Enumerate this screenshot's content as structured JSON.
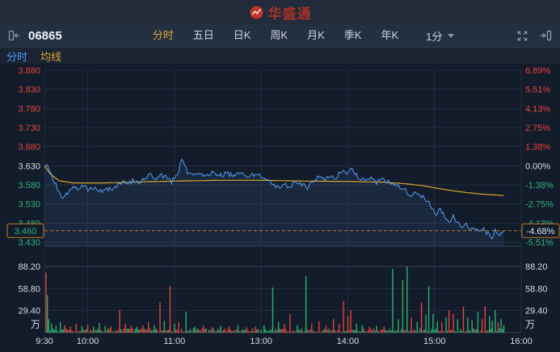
{
  "header": {
    "logo_text": "华盛通"
  },
  "toolbar": {
    "code": "06865",
    "tabs": [
      "分时",
      "五日",
      "日K",
      "周K",
      "月K",
      "季K",
      "年K"
    ],
    "active_tab": "分时",
    "interval": "1分"
  },
  "legend": {
    "items": [
      {
        "label": "分时",
        "color": "#4a9eff"
      },
      {
        "label": "均线",
        "color": "#e0a43a"
      }
    ]
  },
  "chart_data": {
    "type": "line",
    "prev_close": 3.63,
    "ylim": [
      3.43,
      3.88
    ],
    "price_axis_labels": [
      "3.880",
      "3.830",
      "3.780",
      "3.730",
      "3.680",
      "3.630",
      "3.580",
      "3.530",
      "3.480",
      "3.430"
    ],
    "pct_axis_labels": [
      "6.89%",
      "5.51%",
      "4.13%",
      "2.75%",
      "1.38%",
      "0.00%",
      "-1.38%",
      "-2.75%",
      "-4.13%",
      "-5.51%"
    ],
    "time_axis": [
      {
        "label": "9:30",
        "minute": 0
      },
      {
        "label": "10:00",
        "minute": 30
      },
      {
        "label": "11:00",
        "minute": 90
      },
      {
        "label": "13:00",
        "minute": 150
      },
      {
        "label": "14:00",
        "minute": 210
      },
      {
        "label": "15:00",
        "minute": 270
      },
      {
        "label": "16:00",
        "minute": 330
      }
    ],
    "session_minutes": 330,
    "data_end_minute": 318,
    "current": {
      "price": "3.460",
      "pct": "-4.68%"
    },
    "volume_axis_labels": [
      "88.20",
      "58.80",
      "29.40"
    ],
    "volume_unit": "万",
    "volume_max": 88.2,
    "price_keypoints": [
      [
        0,
        3.63
      ],
      [
        2,
        3.633
      ],
      [
        4,
        3.612
      ],
      [
        6,
        3.596
      ],
      [
        9,
        3.57
      ],
      [
        12,
        3.545
      ],
      [
        15,
        3.556
      ],
      [
        18,
        3.566
      ],
      [
        21,
        3.576
      ],
      [
        24,
        3.569
      ],
      [
        27,
        3.577
      ],
      [
        31,
        3.567
      ],
      [
        35,
        3.574
      ],
      [
        39,
        3.563
      ],
      [
        43,
        3.567
      ],
      [
        47,
        3.572
      ],
      [
        51,
        3.58
      ],
      [
        55,
        3.59
      ],
      [
        58,
        3.581
      ],
      [
        62,
        3.594
      ],
      [
        66,
        3.587
      ],
      [
        70,
        3.6
      ],
      [
        74,
        3.608
      ],
      [
        77,
        3.597
      ],
      [
        80,
        3.607
      ],
      [
        84,
        3.599
      ],
      [
        88,
        3.589
      ],
      [
        92,
        3.606
      ],
      [
        95,
        3.645
      ],
      [
        97,
        3.636
      ],
      [
        99,
        3.61
      ],
      [
        103,
        3.604
      ],
      [
        107,
        3.612
      ],
      [
        111,
        3.605
      ],
      [
        116,
        3.611
      ],
      [
        121,
        3.603
      ],
      [
        126,
        3.61
      ],
      [
        131,
        3.604
      ],
      [
        136,
        3.609
      ],
      [
        141,
        3.602
      ],
      [
        146,
        3.607
      ],
      [
        150,
        3.602
      ],
      [
        153,
        3.597
      ],
      [
        156,
        3.589
      ],
      [
        160,
        3.577
      ],
      [
        163,
        3.571
      ],
      [
        166,
        3.582
      ],
      [
        170,
        3.575
      ],
      [
        174,
        3.59
      ],
      [
        178,
        3.581
      ],
      [
        182,
        3.573
      ],
      [
        186,
        3.591
      ],
      [
        190,
        3.601
      ],
      [
        194,
        3.595
      ],
      [
        198,
        3.605
      ],
      [
        202,
        3.599
      ],
      [
        206,
        3.618
      ],
      [
        209,
        3.611
      ],
      [
        212,
        3.622
      ],
      [
        215,
        3.609
      ],
      [
        218,
        3.599
      ],
      [
        222,
        3.591
      ],
      [
        226,
        3.598
      ],
      [
        230,
        3.587
      ],
      [
        234,
        3.595
      ],
      [
        238,
        3.589
      ],
      [
        242,
        3.583
      ],
      [
        246,
        3.576
      ],
      [
        250,
        3.566
      ],
      [
        253,
        3.547
      ],
      [
        256,
        3.562
      ],
      [
        259,
        3.555
      ],
      [
        262,
        3.547
      ],
      [
        265,
        3.539
      ],
      [
        268,
        3.519
      ],
      [
        271,
        3.504
      ],
      [
        274,
        3.516
      ],
      [
        277,
        3.499
      ],
      [
        280,
        3.487
      ],
      [
        283,
        3.497
      ],
      [
        286,
        3.481
      ],
      [
        289,
        3.469
      ],
      [
        292,
        3.479
      ],
      [
        295,
        3.463
      ],
      [
        298,
        3.471
      ],
      [
        301,
        3.454
      ],
      [
        304,
        3.467
      ],
      [
        307,
        3.451
      ],
      [
        310,
        3.441
      ],
      [
        312,
        3.459
      ],
      [
        314,
        3.447
      ],
      [
        316,
        3.453
      ],
      [
        318,
        3.46
      ]
    ],
    "avg_keypoints": [
      [
        0,
        3.63
      ],
      [
        4,
        3.609
      ],
      [
        10,
        3.591
      ],
      [
        20,
        3.585
      ],
      [
        40,
        3.585
      ],
      [
        60,
        3.587
      ],
      [
        90,
        3.59
      ],
      [
        120,
        3.592
      ],
      [
        150,
        3.592
      ],
      [
        180,
        3.59
      ],
      [
        210,
        3.589
      ],
      [
        235,
        3.587
      ],
      [
        250,
        3.583
      ],
      [
        262,
        3.578
      ],
      [
        272,
        3.571
      ],
      [
        282,
        3.565
      ],
      [
        292,
        3.56
      ],
      [
        302,
        3.556
      ],
      [
        310,
        3.554
      ],
      [
        318,
        3.552
      ]
    ],
    "volume_spikes": [
      [
        1,
        80,
        "u"
      ],
      [
        2,
        50,
        "d"
      ],
      [
        3,
        18,
        "d"
      ],
      [
        5,
        12,
        "d"
      ],
      [
        8,
        9,
        "d"
      ],
      [
        11,
        14,
        "d"
      ],
      [
        14,
        10,
        "u"
      ],
      [
        18,
        8,
        "u"
      ],
      [
        22,
        12,
        "u"
      ],
      [
        26,
        9,
        "d"
      ],
      [
        30,
        11,
        "u"
      ],
      [
        34,
        8,
        "d"
      ],
      [
        38,
        13,
        "d"
      ],
      [
        42,
        9,
        "d"
      ],
      [
        46,
        8,
        "u"
      ],
      [
        52,
        30,
        "u"
      ],
      [
        56,
        12,
        "u"
      ],
      [
        60,
        9,
        "u"
      ],
      [
        64,
        8,
        "d"
      ],
      [
        68,
        10,
        "u"
      ],
      [
        72,
        14,
        "u"
      ],
      [
        76,
        10,
        "d"
      ],
      [
        80,
        40,
        "u"
      ],
      [
        83,
        16,
        "d"
      ],
      [
        87,
        62,
        "u"
      ],
      [
        90,
        12,
        "d"
      ],
      [
        93,
        14,
        "u"
      ],
      [
        98,
        28,
        "d"
      ],
      [
        104,
        8,
        "d"
      ],
      [
        110,
        9,
        "u"
      ],
      [
        116,
        7,
        "u"
      ],
      [
        122,
        9,
        "d"
      ],
      [
        128,
        8,
        "u"
      ],
      [
        134,
        10,
        "d"
      ],
      [
        140,
        7,
        "u"
      ],
      [
        146,
        8,
        "u"
      ],
      [
        152,
        10,
        "d"
      ],
      [
        158,
        60,
        "d"
      ],
      [
        162,
        14,
        "d"
      ],
      [
        166,
        11,
        "u"
      ],
      [
        170,
        25,
        "u"
      ],
      [
        175,
        10,
        "d"
      ],
      [
        181,
        75,
        "d"
      ],
      [
        185,
        12,
        "u"
      ],
      [
        190,
        15,
        "u"
      ],
      [
        195,
        9,
        "u"
      ],
      [
        200,
        18,
        "u"
      ],
      [
        204,
        12,
        "u"
      ],
      [
        207,
        42,
        "u"
      ],
      [
        210,
        22,
        "u"
      ],
      [
        212,
        30,
        "u"
      ],
      [
        216,
        12,
        "d"
      ],
      [
        220,
        10,
        "d"
      ],
      [
        225,
        8,
        "u"
      ],
      [
        230,
        9,
        "d"
      ],
      [
        235,
        8,
        "u"
      ],
      [
        241,
        85,
        "d"
      ],
      [
        245,
        18,
        "d"
      ],
      [
        248,
        70,
        "d"
      ],
      [
        251,
        88,
        "d"
      ],
      [
        254,
        20,
        "u"
      ],
      [
        258,
        14,
        "d"
      ],
      [
        261,
        40,
        "u"
      ],
      [
        264,
        24,
        "d"
      ],
      [
        266,
        62,
        "d"
      ],
      [
        269,
        25,
        "d"
      ],
      [
        272,
        15,
        "d"
      ],
      [
        275,
        14,
        "u"
      ],
      [
        278,
        20,
        "d"
      ],
      [
        280,
        30,
        "u"
      ],
      [
        283,
        25,
        "u"
      ],
      [
        286,
        18,
        "d"
      ],
      [
        290,
        35,
        "u"
      ],
      [
        293,
        20,
        "d"
      ],
      [
        296,
        16,
        "d"
      ],
      [
        300,
        28,
        "d"
      ],
      [
        303,
        18,
        "u"
      ],
      [
        305,
        35,
        "u"
      ],
      [
        308,
        22,
        "d"
      ],
      [
        310,
        16,
        "d"
      ],
      [
        312,
        30,
        "d"
      ],
      [
        314,
        14,
        "u"
      ],
      [
        316,
        18,
        "d"
      ],
      [
        318,
        10,
        "d"
      ]
    ],
    "colors": {
      "up": "#e5443f",
      "down": "#2eb47d",
      "flat": "#d8dee8",
      "price_line": "#4f94e8",
      "price_fill": "rgba(79,148,232,0.10)",
      "avg_line": "#d9a62e",
      "marker": "#c07b2d",
      "marker_text": "#dde4ee",
      "grid": "#222c3e",
      "grid_strong": "#334054",
      "axis_text": "#d4dbe5",
      "vol_up": "#e0443c",
      "vol_down": "#2bb071"
    }
  }
}
